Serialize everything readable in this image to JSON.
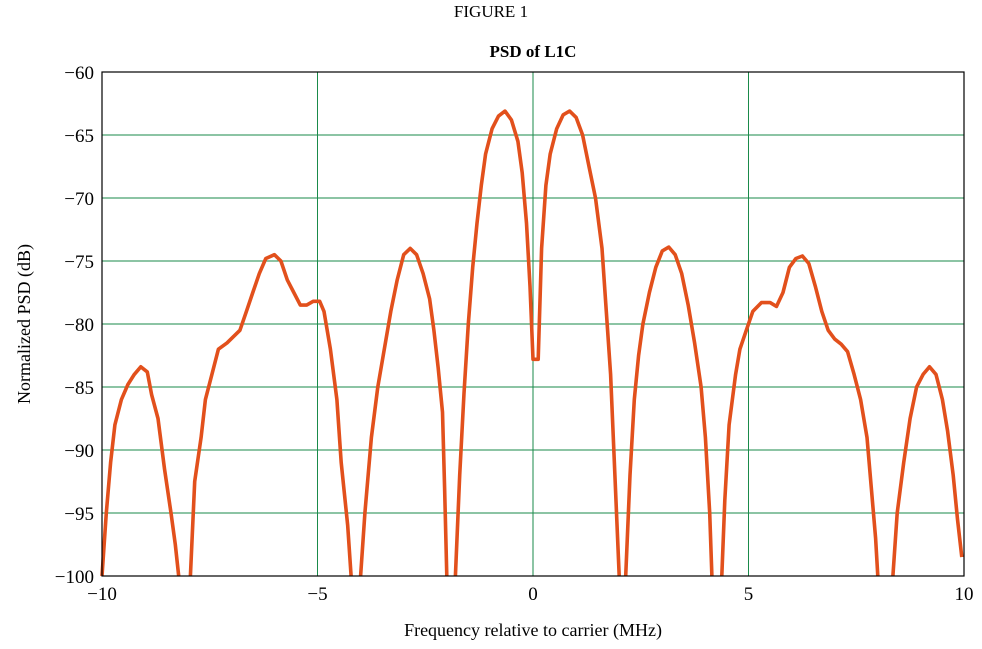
{
  "figure_label": "FIGURE 1",
  "chart_data": {
    "type": "line",
    "title": "PSD of L1C",
    "xlabel": "Frequency relative to carrier (MHz)",
    "ylabel": "Normalized PSD (dB)",
    "xlim": [
      -10,
      10
    ],
    "ylim": [
      -100,
      -60
    ],
    "xticks": [
      -10,
      -5,
      0,
      5,
      10
    ],
    "yticks": [
      -100,
      -95,
      -90,
      -85,
      -80,
      -75,
      -70,
      -65,
      -60
    ],
    "xtick_labels": [
      "−10",
      "−5",
      "0",
      "5",
      "10"
    ],
    "ytick_labels": [
      "−100",
      "−95",
      "−90",
      "−85",
      "−80",
      "−75",
      "−70",
      "−65",
      "−60"
    ],
    "grid": true,
    "grid_color": "#1a8a4a",
    "series": [
      {
        "color": "#e2501c",
        "segments": [
          [
            [
              -10.0,
              -100
            ],
            [
              -9.9,
              -95
            ],
            [
              -9.8,
              -91
            ],
            [
              -9.7,
              -88
            ],
            [
              -9.55,
              -86
            ],
            [
              -9.4,
              -84.8
            ],
            [
              -9.25,
              -84
            ],
            [
              -9.1,
              -83.4
            ],
            [
              -8.95,
              -83.8
            ],
            [
              -8.85,
              -85.6
            ],
            [
              -8.7,
              -87.5
            ],
            [
              -8.55,
              -91.5
            ],
            [
              -8.4,
              -95
            ],
            [
              -8.3,
              -97.5
            ],
            [
              -8.22,
              -100
            ]
          ],
          [
            [
              -7.95,
              -100
            ],
            [
              -7.85,
              -92.5
            ],
            [
              -7.7,
              -89
            ],
            [
              -7.6,
              -86
            ],
            [
              -7.45,
              -84
            ],
            [
              -7.3,
              -82
            ],
            [
              -7.1,
              -81.5
            ],
            [
              -6.95,
              -81
            ],
            [
              -6.8,
              -80.5
            ],
            [
              -6.65,
              -79
            ],
            [
              -6.5,
              -77.5
            ],
            [
              -6.35,
              -76
            ],
            [
              -6.2,
              -74.8
            ],
            [
              -6.0,
              -74.5
            ],
            [
              -5.85,
              -75
            ],
            [
              -5.7,
              -76.5
            ],
            [
              -5.55,
              -77.5
            ],
            [
              -5.4,
              -78.5
            ],
            [
              -5.25,
              -78.5
            ],
            [
              -5.1,
              -78.2
            ],
            [
              -4.95,
              -78.2
            ],
            [
              -4.85,
              -79
            ],
            [
              -4.7,
              -82
            ],
            [
              -4.55,
              -86
            ],
            [
              -4.45,
              -91
            ],
            [
              -4.3,
              -96
            ],
            [
              -4.22,
              -100
            ]
          ],
          [
            [
              -4.0,
              -100
            ],
            [
              -3.9,
              -95
            ],
            [
              -3.75,
              -89
            ],
            [
              -3.6,
              -85
            ],
            [
              -3.45,
              -82
            ],
            [
              -3.3,
              -79
            ],
            [
              -3.15,
              -76.5
            ],
            [
              -3.0,
              -74.5
            ],
            [
              -2.85,
              -74
            ],
            [
              -2.7,
              -74.5
            ],
            [
              -2.55,
              -76
            ],
            [
              -2.4,
              -78
            ],
            [
              -2.3,
              -80.5
            ],
            [
              -2.2,
              -83.5
            ],
            [
              -2.1,
              -87
            ],
            [
              -2.05,
              -93
            ],
            [
              -2.0,
              -100
            ]
          ],
          [
            [
              -1.8,
              -100
            ],
            [
              -1.7,
              -92
            ],
            [
              -1.6,
              -85.5
            ],
            [
              -1.5,
              -80
            ],
            [
              -1.4,
              -75.5
            ],
            [
              -1.3,
              -72
            ],
            [
              -1.2,
              -69
            ],
            [
              -1.1,
              -66.5
            ],
            [
              -0.95,
              -64.5
            ],
            [
              -0.8,
              -63.5
            ],
            [
              -0.65,
              -63.1
            ],
            [
              -0.5,
              -63.8
            ],
            [
              -0.35,
              -65.5
            ],
            [
              -0.25,
              -68
            ],
            [
              -0.15,
              -72
            ],
            [
              -0.07,
              -77
            ],
            [
              0.0,
              -82.8
            ],
            [
              0.12,
              -82.8
            ],
            [
              0.2,
              -74
            ],
            [
              0.3,
              -69
            ],
            [
              0.4,
              -66.5
            ],
            [
              0.55,
              -64.5
            ],
            [
              0.7,
              -63.4
            ],
            [
              0.85,
              -63.1
            ],
            [
              1.0,
              -63.6
            ],
            [
              1.15,
              -65
            ],
            [
              1.3,
              -67.5
            ],
            [
              1.45,
              -70
            ],
            [
              1.6,
              -74
            ],
            [
              1.7,
              -79
            ],
            [
              1.8,
              -84
            ],
            [
              1.9,
              -92
            ],
            [
              2.0,
              -100
            ]
          ],
          [
            [
              2.15,
              -100
            ],
            [
              2.25,
              -92
            ],
            [
              2.35,
              -86
            ],
            [
              2.45,
              -82.5
            ],
            [
              2.55,
              -80
            ],
            [
              2.7,
              -77.5
            ],
            [
              2.85,
              -75.5
            ],
            [
              3.0,
              -74.2
            ],
            [
              3.15,
              -73.9
            ],
            [
              3.3,
              -74.5
            ],
            [
              3.45,
              -76
            ],
            [
              3.6,
              -78.5
            ],
            [
              3.75,
              -81.5
            ],
            [
              3.9,
              -85
            ],
            [
              4.0,
              -89
            ],
            [
              4.1,
              -95
            ],
            [
              4.15,
              -100
            ]
          ],
          [
            [
              4.38,
              -100
            ],
            [
              4.45,
              -94
            ],
            [
              4.55,
              -88
            ],
            [
              4.7,
              -84
            ],
            [
              4.8,
              -82
            ],
            [
              4.95,
              -80.5
            ],
            [
              5.1,
              -79
            ],
            [
              5.3,
              -78.3
            ],
            [
              5.5,
              -78.3
            ],
            [
              5.65,
              -78.6
            ],
            [
              5.8,
              -77.5
            ],
            [
              5.95,
              -75.5
            ],
            [
              6.1,
              -74.8
            ],
            [
              6.25,
              -74.6
            ],
            [
              6.4,
              -75.2
            ],
            [
              6.55,
              -77
            ],
            [
              6.7,
              -79
            ],
            [
              6.85,
              -80.5
            ],
            [
              7.0,
              -81.2
            ],
            [
              7.15,
              -81.6
            ],
            [
              7.3,
              -82.2
            ],
            [
              7.45,
              -84
            ],
            [
              7.6,
              -86
            ],
            [
              7.75,
              -89
            ],
            [
              7.85,
              -93
            ],
            [
              7.95,
              -97
            ],
            [
              8.0,
              -100
            ]
          ],
          [
            [
              8.35,
              -100
            ],
            [
              8.45,
              -95
            ],
            [
              8.6,
              -91
            ],
            [
              8.75,
              -87.5
            ],
            [
              8.9,
              -85
            ],
            [
              9.05,
              -84
            ],
            [
              9.2,
              -83.4
            ],
            [
              9.35,
              -84
            ],
            [
              9.5,
              -86
            ],
            [
              9.62,
              -88.5
            ],
            [
              9.75,
              -92
            ],
            [
              9.85,
              -95.5
            ],
            [
              9.95,
              -98.5
            ]
          ]
        ]
      }
    ]
  }
}
